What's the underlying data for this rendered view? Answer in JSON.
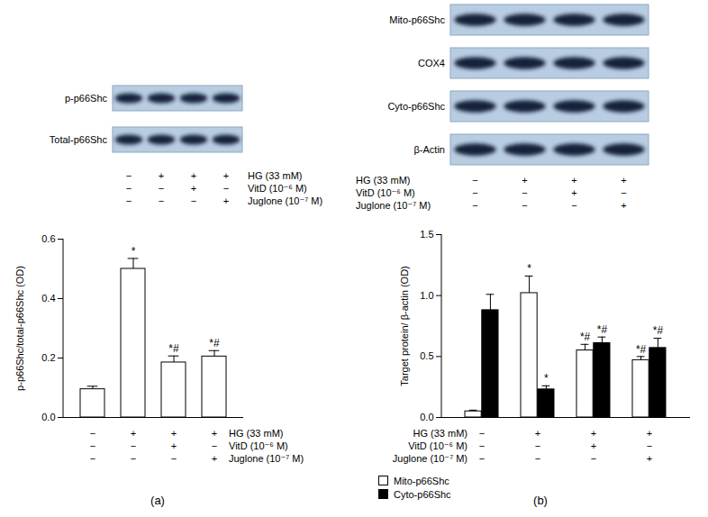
{
  "chart_data": [
    {
      "type": "bar",
      "title": "(a)",
      "blot": [
        "p-p66Shc",
        "Total-p66Shc"
      ],
      "conditions": [
        {
          "label": "HG (33 mM)",
          "values": [
            "−",
            "+",
            "+",
            "+"
          ]
        },
        {
          "label": "VitD (10⁻⁶ M)",
          "values": [
            "−",
            "−",
            "+",
            "−"
          ]
        },
        {
          "label": "Juglone (10⁻⁷ M)",
          "values": [
            "−",
            "−",
            "−",
            "+"
          ]
        }
      ],
      "categories": [
        null,
        null,
        null,
        null
      ],
      "y_label": "p-p66Shc/total-p66Shc (OD)",
      "values": [
        0.095,
        0.5,
        0.185,
        0.205
      ],
      "errors": [
        0.01,
        0.035,
        0.022,
        0.02
      ],
      "annotations": [
        null,
        "*",
        "*#",
        "*#"
      ],
      "color": "#ffffff",
      "ylim": [
        0,
        0.6
      ],
      "yticks": [
        {
          "value": 0,
          "label": "0.0"
        },
        {
          "value": 0.2,
          "label": "0.2"
        },
        {
          "value": 0.4,
          "label": "0.4"
        },
        {
          "value": 0.6,
          "label": "0.6"
        }
      ]
    },
    {
      "type": "bar",
      "title": "(b)",
      "blot": [
        "Mito-p66Shc",
        "COX4",
        "Cyto-p66Shc",
        "β-Actin"
      ],
      "conditions": [
        {
          "label": "HG (33 mM)",
          "values": [
            "−",
            "+",
            "+",
            "+"
          ]
        },
        {
          "label": "VitD (10⁻⁶ M)",
          "values": [
            "−",
            "−",
            "+",
            "−"
          ]
        },
        {
          "label": "Juglone (10⁻⁷ M)",
          "values": [
            "−",
            "−",
            "−",
            "+"
          ]
        }
      ],
      "categories": [
        null,
        null,
        null,
        null
      ],
      "y_label": "Target protein/ β-actin (OD)",
      "series": [
        {
          "name": "Mito-p66Shc",
          "color": "#ffffff",
          "values": [
            0.05,
            1.02,
            0.55,
            0.47
          ],
          "errors": [
            0.01,
            0.14,
            0.05,
            0.03
          ],
          "annotations": [
            null,
            "*",
            "*#",
            "*#"
          ]
        },
        {
          "name": "Cyto-p66Shc",
          "color": "#000000",
          "values": [
            0.88,
            0.23,
            0.61,
            0.57
          ],
          "errors": [
            0.13,
            0.03,
            0.05,
            0.08
          ],
          "annotations": [
            null,
            "*",
            "*#",
            "*#"
          ]
        }
      ],
      "legend": "bottom-left",
      "ylim": [
        0,
        1.5
      ],
      "yticks": [
        {
          "value": 0,
          "label": "0.0"
        },
        {
          "value": 0.5,
          "label": "0.5"
        },
        {
          "value": 1,
          "label": "1.0"
        },
        {
          "value": 1.5,
          "label": "1.5"
        }
      ]
    }
  ]
}
